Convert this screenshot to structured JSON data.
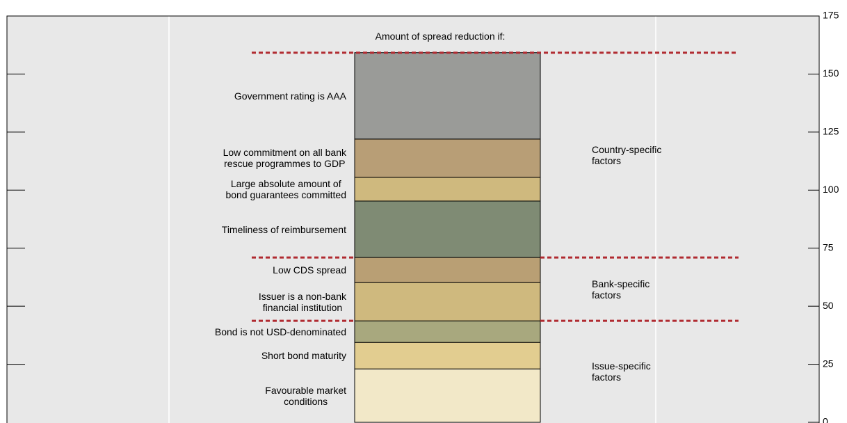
{
  "chart_data": {
    "type": "stacked-bar",
    "title": "Amount of spread reduction if:",
    "series": [
      {
        "name": "Favourable market\nconditions",
        "color": "#f2e8c8",
        "values": [
          23
        ]
      },
      {
        "name": "Short bond maturity",
        "color": "#e2cd90",
        "values": [
          11.4
        ]
      },
      {
        "name": "Bond is not USD-denominated",
        "color": "#a8a87e",
        "values": [
          9.3
        ]
      },
      {
        "name": "Issuer is a non-bank\nfinancial institution",
        "color": "#cfb97e",
        "values": [
          16.5
        ]
      },
      {
        "name": "Low CDS spread",
        "color": "#b99f74",
        "values": [
          10.8
        ]
      },
      {
        "name": "Timeliness of reimbursement",
        "color": "#7f8b74",
        "values": [
          24.3
        ]
      },
      {
        "name": "Large absolute amount of\nbond guarantees committed",
        "color": "#cfb97e",
        "values": [
          10.2
        ]
      },
      {
        "name": "Low commitment on all bank\nrescue programmes to GDP",
        "color": "#b89e76",
        "values": [
          16.5
        ]
      },
      {
        "name": "Government rating is AAA",
        "color": "#9a9b98",
        "values": [
          37.2
        ]
      }
    ],
    "groups": [
      "Issue-specific\nfactors",
      "Bank-specific\nfactors",
      "Country-specific\nfactors"
    ],
    "ylim": [
      0,
      175
    ],
    "yticks": [
      0,
      25,
      50,
      75,
      100,
      125,
      150,
      175
    ],
    "divider_color": "#b02a30"
  }
}
